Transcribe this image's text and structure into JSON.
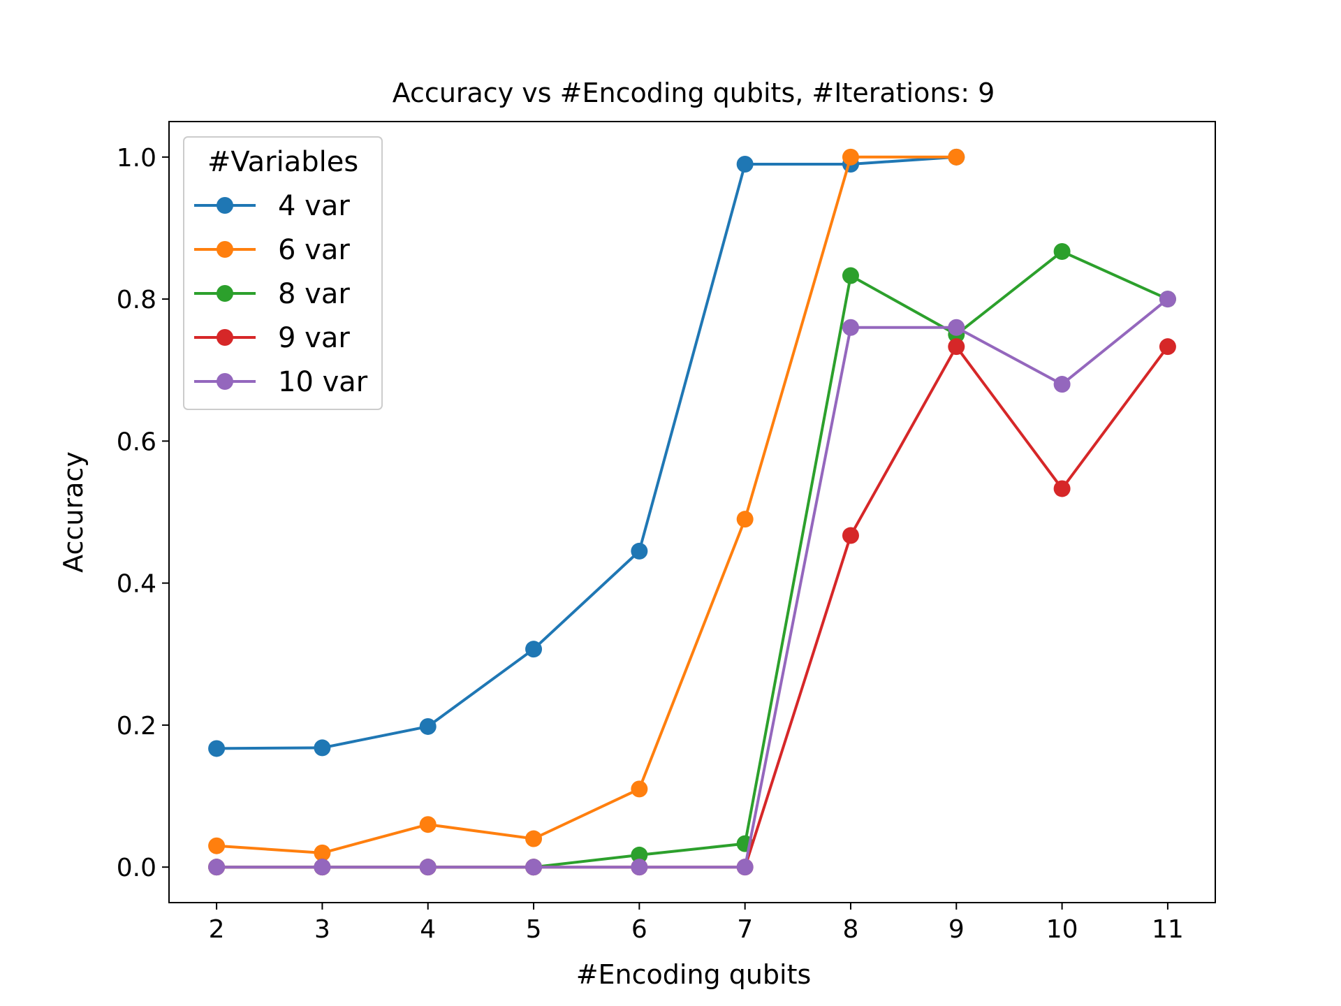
{
  "chart_data": {
    "type": "line",
    "title": "Accuracy vs #Encoding qubits, #Iterations: 9",
    "xlabel": "#Encoding qubits",
    "ylabel": "Accuracy",
    "xlim": [
      1.55,
      11.45
    ],
    "ylim": [
      -0.05,
      1.05
    ],
    "xticks": [
      2,
      3,
      4,
      5,
      6,
      7,
      8,
      9,
      10,
      11
    ],
    "yticks": [
      0.0,
      0.2,
      0.4,
      0.6,
      0.8,
      1.0
    ],
    "ytick_labels": [
      "0.0",
      "0.2",
      "0.4",
      "0.6",
      "0.8",
      "1.0"
    ],
    "grid": false,
    "legend": {
      "title": "#Variables",
      "placement": "top-left"
    },
    "series": [
      {
        "name": "4 var",
        "color": "#1f77b4",
        "x": [
          2,
          3,
          4,
          5,
          6,
          7,
          8,
          9
        ],
        "y": [
          0.167,
          0.168,
          0.198,
          0.307,
          0.445,
          0.99,
          0.99,
          1.0
        ]
      },
      {
        "name": "6 var",
        "color": "#ff7f0e",
        "x": [
          2,
          3,
          4,
          5,
          6,
          7,
          8,
          9
        ],
        "y": [
          0.03,
          0.02,
          0.06,
          0.04,
          0.11,
          0.49,
          1.0,
          1.0
        ]
      },
      {
        "name": "8 var",
        "color": "#2ca02c",
        "x": [
          2,
          3,
          4,
          5,
          6,
          7,
          8,
          9,
          10,
          11
        ],
        "y": [
          0.0,
          0.0,
          0.0,
          0.0,
          0.017,
          0.033,
          0.833,
          0.75,
          0.867,
          0.8
        ]
      },
      {
        "name": "9 var",
        "color": "#d62728",
        "x": [
          2,
          3,
          4,
          5,
          6,
          7,
          8,
          9,
          10,
          11
        ],
        "y": [
          0.0,
          0.0,
          0.0,
          0.0,
          0.0,
          0.0,
          0.467,
          0.733,
          0.533,
          0.733
        ]
      },
      {
        "name": "10 var",
        "color": "#9467bd",
        "x": [
          2,
          3,
          4,
          5,
          6,
          7,
          8,
          9,
          10,
          11
        ],
        "y": [
          0.0,
          0.0,
          0.0,
          0.0,
          0.0,
          0.0,
          0.76,
          0.76,
          0.68,
          0.8
        ]
      }
    ]
  }
}
